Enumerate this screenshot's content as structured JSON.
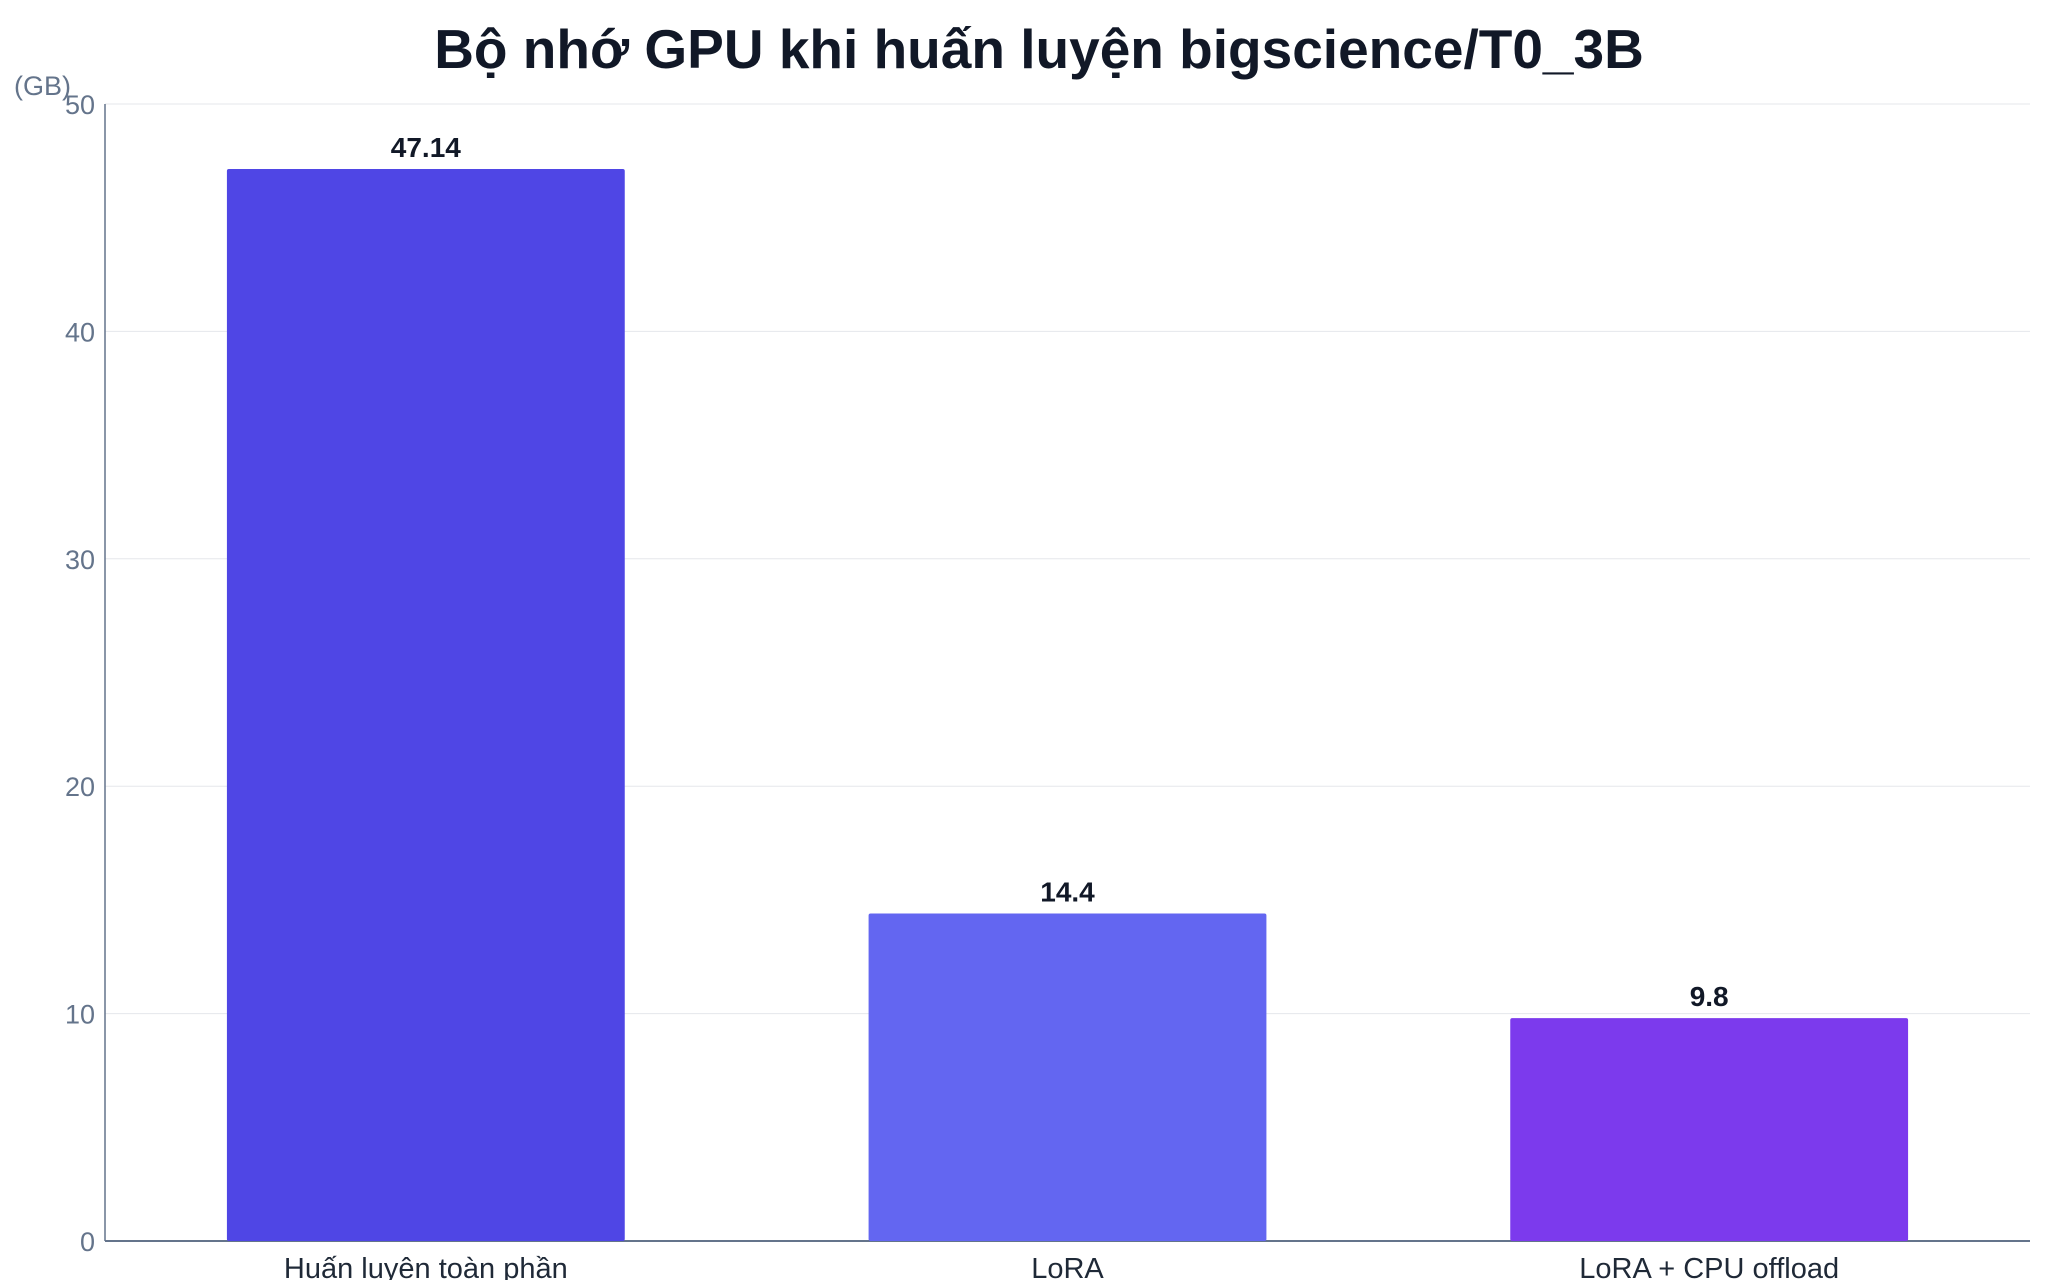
{
  "chart_data": {
    "type": "bar",
    "title": "Bộ nhớ GPU khi huấn luyện bigscience/T0_3B",
    "xlabel": "",
    "ylabel": "(GB)",
    "categories": [
      "Huấn luyện toàn phần",
      "LoRA",
      "LoRA + CPU offload"
    ],
    "values": [
      47.14,
      14.4,
      9.8
    ],
    "data_labels": [
      "47.14",
      "14.4",
      "9.8"
    ],
    "ylim": [
      0,
      50
    ],
    "yticks": [
      0,
      10,
      20,
      30,
      40,
      50
    ],
    "ytick_labels": [
      "0",
      "10",
      "20",
      "30",
      "40",
      "50"
    ],
    "grid": true,
    "legend": "none",
    "colors": [
      "#4f46e5",
      "#6366f1",
      "#7c3aed"
    ]
  }
}
